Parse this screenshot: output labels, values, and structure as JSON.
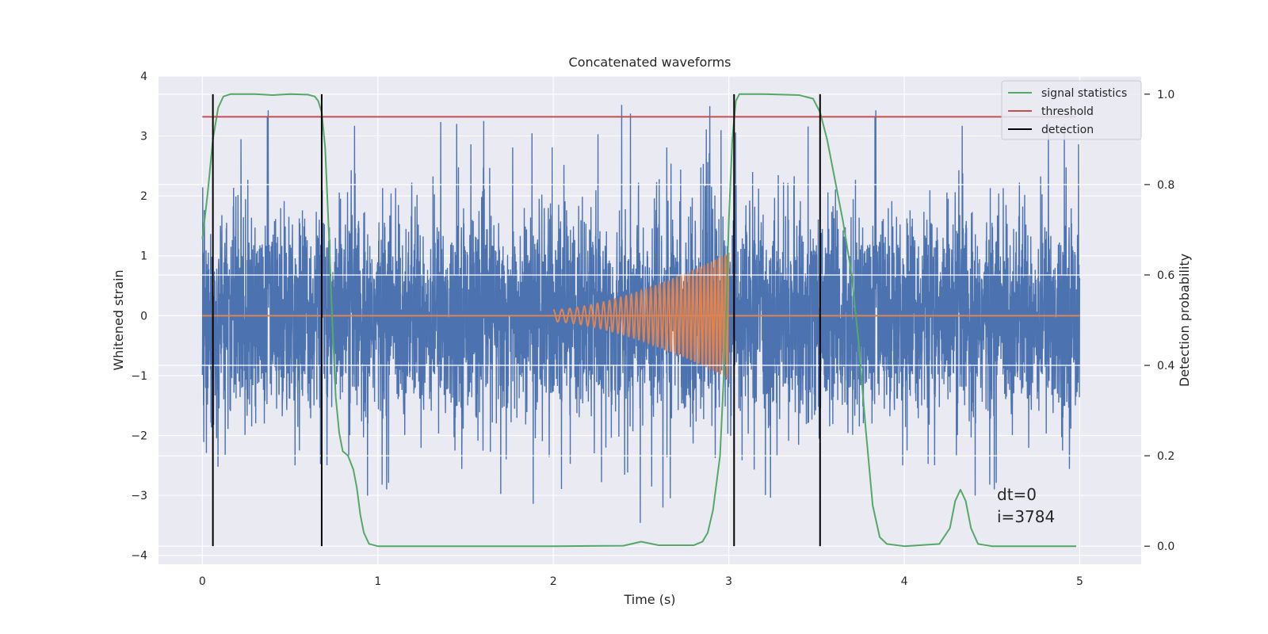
{
  "chart_data": {
    "type": "line",
    "title": "Concatenated waveforms",
    "xlabel": "Time (s)",
    "ylabel": "Whitened strain",
    "y2label": "Detection probability",
    "xlim": [
      -0.25,
      5.35
    ],
    "ylim": [
      -4.15,
      4.0
    ],
    "y2lim": [
      -0.04,
      1.04
    ],
    "xticks": [
      0,
      1,
      2,
      3,
      4,
      5
    ],
    "xtick_labels": [
      "0",
      "1",
      "2",
      "3",
      "4",
      "5"
    ],
    "yticks": [
      -4,
      -3,
      -2,
      -1,
      0,
      1,
      2,
      3,
      4
    ],
    "ytick_labels": [
      "−4",
      "−3",
      "−2",
      "−1",
      "0",
      "1",
      "2",
      "3",
      "4"
    ],
    "y2ticks": [
      0.0,
      0.2,
      0.4,
      0.6,
      0.8,
      1.0
    ],
    "y2tick_labels": [
      "0.0",
      "0.2",
      "0.4",
      "0.6",
      "0.8",
      "1.0"
    ],
    "grid": true,
    "legend_position": "top-right",
    "legend": [
      {
        "label": "signal statistics",
        "color": "#55a868"
      },
      {
        "label": "threshold",
        "color": "#c44e52"
      },
      {
        "label": "detection",
        "color": "#000000"
      }
    ],
    "colors": {
      "strain": "#4c72b0",
      "injected_waveform": "#dd8452",
      "signal_statistics": "#55a868",
      "threshold": "#c44e52",
      "detection": "#000000",
      "axes_bg": "#eaeaf2",
      "grid": "#ffffff"
    },
    "threshold": 0.95,
    "detections": [
      0.06,
      0.68,
      3.03,
      3.52
    ],
    "signal_statistics": {
      "x": [
        0.0,
        0.03,
        0.06,
        0.09,
        0.12,
        0.16,
        0.22,
        0.3,
        0.4,
        0.5,
        0.6,
        0.64,
        0.66,
        0.68,
        0.7,
        0.72,
        0.74,
        0.76,
        0.78,
        0.8,
        0.83,
        0.86,
        0.88,
        0.9,
        0.92,
        0.95,
        1.0,
        1.5,
        2.0,
        2.4,
        2.5,
        2.6,
        2.8,
        2.85,
        2.88,
        2.91,
        2.95,
        2.98,
        3.0,
        3.02,
        3.04,
        3.06,
        3.1,
        3.2,
        3.4,
        3.48,
        3.52,
        3.56,
        3.6,
        3.65,
        3.7,
        3.74,
        3.78,
        3.82,
        3.86,
        3.9,
        4.0,
        4.2,
        4.26,
        4.29,
        4.32,
        4.35,
        4.38,
        4.42,
        4.5,
        4.98
      ],
      "y": [
        0.68,
        0.78,
        0.9,
        0.97,
        0.995,
        1.0,
        1.0,
        1.0,
        0.998,
        1.0,
        0.999,
        0.995,
        0.985,
        0.96,
        0.88,
        0.7,
        0.5,
        0.33,
        0.25,
        0.21,
        0.2,
        0.17,
        0.13,
        0.07,
        0.03,
        0.005,
        0.0,
        0.0,
        0.0,
        0.001,
        0.01,
        0.002,
        0.002,
        0.01,
        0.03,
        0.08,
        0.2,
        0.45,
        0.72,
        0.9,
        0.985,
        1.0,
        1.0,
        1.0,
        0.998,
        0.99,
        0.96,
        0.9,
        0.82,
        0.72,
        0.6,
        0.45,
        0.26,
        0.09,
        0.02,
        0.005,
        0.0,
        0.005,
        0.04,
        0.1,
        0.125,
        0.1,
        0.04,
        0.005,
        0.0,
        0.0
      ]
    },
    "strain": {
      "t_start": 0.0,
      "t_end": 5.0,
      "typical_range": [
        -1.0,
        1.0
      ],
      "extremes_range": [
        -3.9,
        3.65
      ]
    },
    "injected_waveform": {
      "t_start": 2.0,
      "t_end": 3.0,
      "amplitude_start": 0.1,
      "amplitude_end": 1.05,
      "oscillations": 36
    },
    "annotation_lines": [
      "dt=0",
      "i=3784"
    ]
  }
}
